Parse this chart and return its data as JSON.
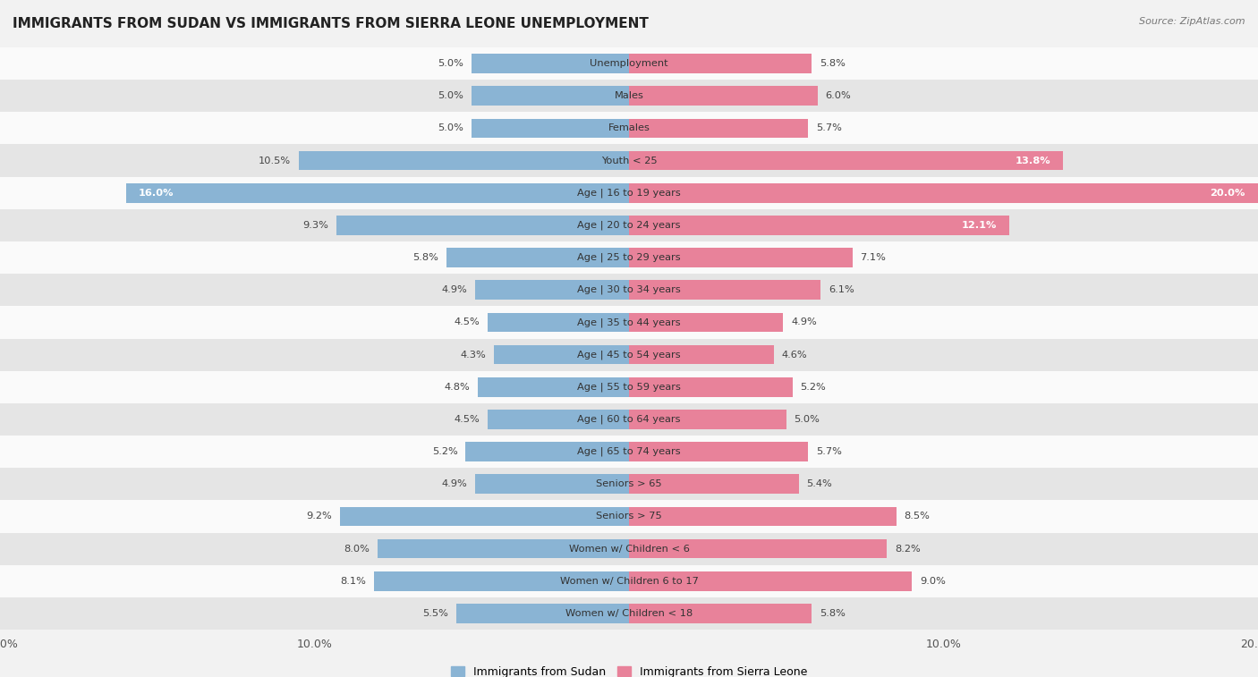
{
  "title": "IMMIGRANTS FROM SUDAN VS IMMIGRANTS FROM SIERRA LEONE UNEMPLOYMENT",
  "source": "Source: ZipAtlas.com",
  "categories": [
    "Unemployment",
    "Males",
    "Females",
    "Youth < 25",
    "Age | 16 to 19 years",
    "Age | 20 to 24 years",
    "Age | 25 to 29 years",
    "Age | 30 to 34 years",
    "Age | 35 to 44 years",
    "Age | 45 to 54 years",
    "Age | 55 to 59 years",
    "Age | 60 to 64 years",
    "Age | 65 to 74 years",
    "Seniors > 65",
    "Seniors > 75",
    "Women w/ Children < 6",
    "Women w/ Children 6 to 17",
    "Women w/ Children < 18"
  ],
  "sudan_values": [
    5.0,
    5.0,
    5.0,
    10.5,
    16.0,
    9.3,
    5.8,
    4.9,
    4.5,
    4.3,
    4.8,
    4.5,
    5.2,
    4.9,
    9.2,
    8.0,
    8.1,
    5.5
  ],
  "sierra_leone_values": [
    5.8,
    6.0,
    5.7,
    13.8,
    20.0,
    12.1,
    7.1,
    6.1,
    4.9,
    4.6,
    5.2,
    5.0,
    5.7,
    5.4,
    8.5,
    8.2,
    9.0,
    5.8
  ],
  "sudan_color": "#8ab4d4",
  "sierra_leone_color": "#e8829a",
  "sudan_label": "Immigrants from Sudan",
  "sierra_leone_label": "Immigrants from Sierra Leone",
  "bg_color": "#f2f2f2",
  "row_light": "#fafafa",
  "row_dark": "#e5e5e5",
  "max_value": 20.0,
  "bar_height": 0.6,
  "label_color_dark": "#555555",
  "label_color_white": "#ffffff"
}
